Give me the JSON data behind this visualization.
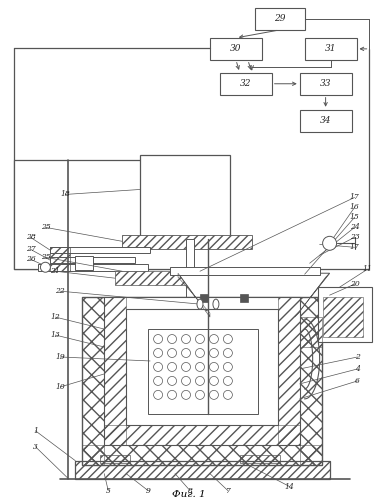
{
  "title": "Фиг. 1",
  "bg_color": "#ffffff",
  "line_color": "#555555",
  "fig_width": 3.79,
  "fig_height": 5.0,
  "dpi": 100
}
